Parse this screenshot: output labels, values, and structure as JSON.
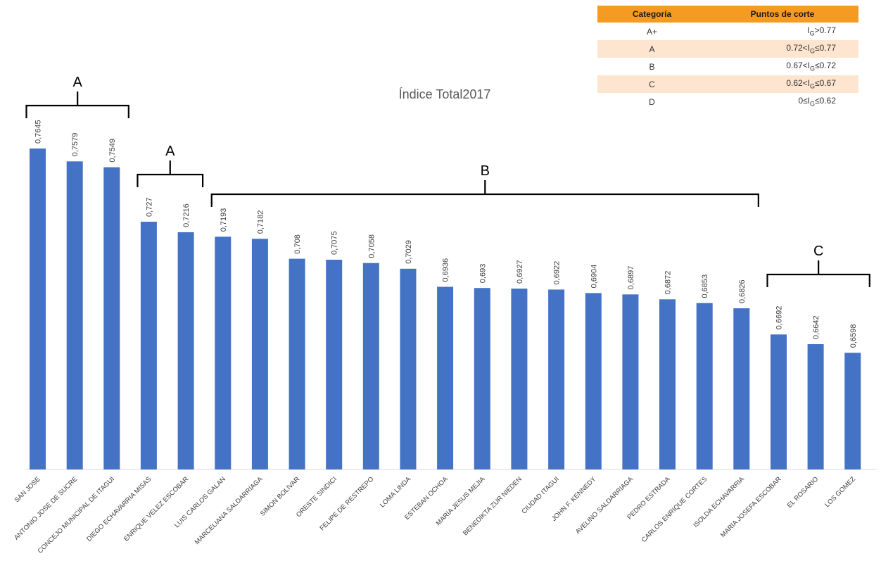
{
  "chart_data": {
    "type": "bar",
    "title": "Índice Total2017",
    "categories": [
      "SAN JOSE",
      "ANTONIO JOSE DE SUCRE",
      "CONCEJO MUNICIPAL DE ITAGUI",
      "DIEGO ECHAVARRIA MISAS",
      "ENRIQUE VELEZ ESCOBAR",
      "LUIS CARLOS GALAN",
      "MARCELIANA SALDARRIAGA",
      "SIMON BOLIVAR",
      "ORESTE SINDICI",
      "FELIPE DE RESTREPO",
      "LOMA LINDA",
      "ESTEBAN OCHOA",
      "MARIA JESUS MEJIA",
      "BENEDIKTA ZUR NIEDEN",
      "CIUDAD ITAGUI",
      "JOHN F. KENNEDY",
      "AVELINO SALDARRIAGA",
      "PEDRO ESTRADA",
      "CARLOS ENRIQUE CORTES",
      "ISOLDA ECHAVARRIA",
      "MARIA JOSEFA ESCOBAR",
      "EL ROSARIO",
      "LOS GOMEZ"
    ],
    "values": [
      0.7645,
      0.7579,
      0.7549,
      0.727,
      0.7216,
      0.7193,
      0.7182,
      0.708,
      0.7075,
      0.7058,
      0.7029,
      0.6936,
      0.693,
      0.6927,
      0.6922,
      0.6904,
      0.6897,
      0.6872,
      0.6853,
      0.6826,
      0.6692,
      0.6642,
      0.6598
    ],
    "value_labels": [
      "0,7645",
      "0,7579",
      "0,7549",
      "0,727",
      "0,7216",
      "0,7193",
      "0,7182",
      "0,708",
      "0,7075",
      "0,7058",
      "0,7029",
      "0,6936",
      "0,693",
      "0,6927",
      "0,6922",
      "0,6904",
      "0,6897",
      "0,6872",
      "0,6853",
      "0,6826",
      "0,6692",
      "0,6642",
      "0,6598"
    ],
    "ylim": [
      0.6,
      0.78
    ],
    "bar_color": "#4472c4",
    "grid": false,
    "legend": "none",
    "groups": [
      {
        "label": "A",
        "from": 0,
        "to": 2
      },
      {
        "label": "A",
        "from": 3,
        "to": 4
      },
      {
        "label": "B",
        "from": 5,
        "to": 19
      },
      {
        "label": "C",
        "from": 20,
        "to": 22
      }
    ]
  },
  "table": {
    "header_color": "#f59a23",
    "shade_color": "#fde5cf",
    "headers": [
      "Categoría",
      "Puntos de corte"
    ],
    "rows": [
      {
        "cat": "A+",
        "pre": "I",
        "sub": "G",
        "post": ">0.77"
      },
      {
        "cat": "A",
        "pre": "0.72<I",
        "sub": "G",
        "post": "≤0.77"
      },
      {
        "cat": "B",
        "pre": "0.67<I",
        "sub": "G",
        "post": "≤0.72"
      },
      {
        "cat": "C",
        "pre": "0.62<I",
        "sub": "G",
        "post": "≤0.67"
      },
      {
        "cat": "D",
        "pre": "0≤I",
        "sub": "G",
        "post": "≤0.62"
      }
    ]
  }
}
